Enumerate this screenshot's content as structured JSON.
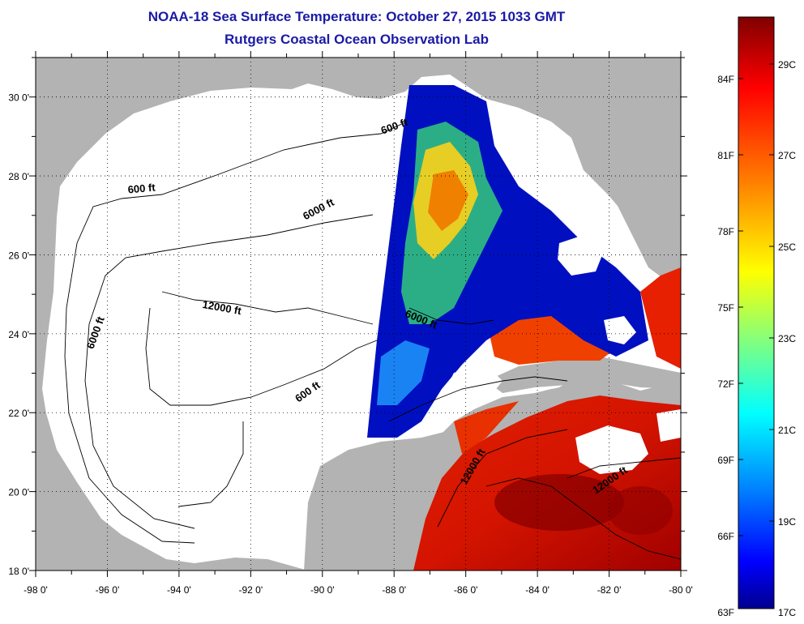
{
  "title": "NOAA-18 Sea Surface Temperature:  October 27, 2015 1033 GMT",
  "subtitle": "Rutgers Coastal Ocean Observation Lab",
  "map": {
    "lon_range": [
      -98,
      -80
    ],
    "lat_range": [
      18,
      31
    ],
    "x_ticks": [
      "-98 0'",
      "-96 0'",
      "-94 0'",
      "-92 0'",
      "-90 0'",
      "-88 0'",
      "-86 0'",
      "-84 0'",
      "-82 0'",
      "-80 0'"
    ],
    "y_ticks": [
      "18 0'",
      "20 0'",
      "22 0'",
      "24 0'",
      "26 0'",
      "28 0'",
      "30 0'"
    ],
    "grid": "dotted",
    "land_color": "#b3b3b3",
    "cloud_color": "#ffffff",
    "depth_labels": [
      "600 ft",
      "600 ft",
      "6000 ft",
      "6000 ft",
      "12000 ft",
      "6000 ft",
      "600 ft",
      "12000 ft",
      "12000 ft"
    ]
  },
  "colorbar": {
    "fahrenheit_labels": [
      "84F",
      "81F",
      "78F",
      "75F",
      "72F",
      "69F",
      "66F",
      "63F"
    ],
    "celsius_labels": [
      "29C",
      "27C",
      "25C",
      "23C",
      "21C",
      "19C",
      "17C"
    ],
    "colors": [
      "#800000",
      "#ff0000",
      "#ff8000",
      "#ffff00",
      "#80ff80",
      "#00ffff",
      "#0080ff",
      "#0000ff",
      "#00008f"
    ]
  }
}
